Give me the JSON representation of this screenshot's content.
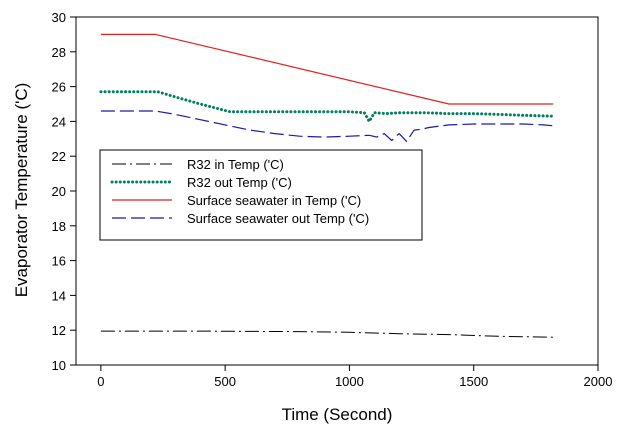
{
  "chart_data": {
    "type": "line",
    "xlabel": "Time (Second)",
    "ylabel": "Evaporator Temperature ('C)",
    "xlim": [
      -100,
      2000
    ],
    "ylim": [
      10,
      30
    ],
    "xticks": [
      0,
      500,
      1000,
      1500,
      2000
    ],
    "yticks": [
      10,
      12,
      14,
      16,
      18,
      20,
      22,
      24,
      26,
      28,
      30
    ],
    "grid": false,
    "legend_position": "center-left",
    "series": [
      {
        "name": "R32 in Temp ('C)",
        "color": "#000000",
        "style": "dash-dot",
        "x": [
          0,
          200,
          400,
          600,
          800,
          1000,
          1200,
          1400,
          1600,
          1820
        ],
        "y": [
          11.95,
          11.95,
          11.95,
          11.93,
          11.92,
          11.88,
          11.8,
          11.75,
          11.65,
          11.6
        ]
      },
      {
        "name": "R32 out Temp ('C)",
        "color": "#008060",
        "style": "dotted",
        "x": [
          0,
          100,
          200,
          230,
          300,
          400,
          480,
          520,
          600,
          700,
          800,
          900,
          1000,
          1060,
          1080,
          1100,
          1150,
          1200,
          1300,
          1400,
          1500,
          1600,
          1700,
          1820
        ],
        "y": [
          25.7,
          25.7,
          25.7,
          25.7,
          25.4,
          25.0,
          24.7,
          24.55,
          24.55,
          24.55,
          24.55,
          24.55,
          24.55,
          24.5,
          24.0,
          24.5,
          24.45,
          24.5,
          24.5,
          24.45,
          24.45,
          24.4,
          24.35,
          24.3
        ]
      },
      {
        "name": "Surface seawater in Temp ('C)",
        "color": "#dd2222",
        "style": "solid",
        "x": [
          0,
          220,
          1400,
          1820
        ],
        "y": [
          29.0,
          29.0,
          25.0,
          25.0
        ]
      },
      {
        "name": "Surface seawater out Temp ('C)",
        "color": "#1a1aaa",
        "style": "dashed",
        "x": [
          0,
          100,
          220,
          300,
          400,
          500,
          600,
          700,
          800,
          900,
          1000,
          1080,
          1110,
          1140,
          1170,
          1200,
          1230,
          1260,
          1290,
          1320,
          1400,
          1500,
          1600,
          1700,
          1780,
          1820
        ],
        "y": [
          24.6,
          24.6,
          24.6,
          24.4,
          24.1,
          23.8,
          23.5,
          23.3,
          23.15,
          23.1,
          23.15,
          23.2,
          23.1,
          23.3,
          22.9,
          23.3,
          22.85,
          23.5,
          23.55,
          23.65,
          23.8,
          23.85,
          23.85,
          23.85,
          23.8,
          23.75
        ]
      }
    ]
  }
}
